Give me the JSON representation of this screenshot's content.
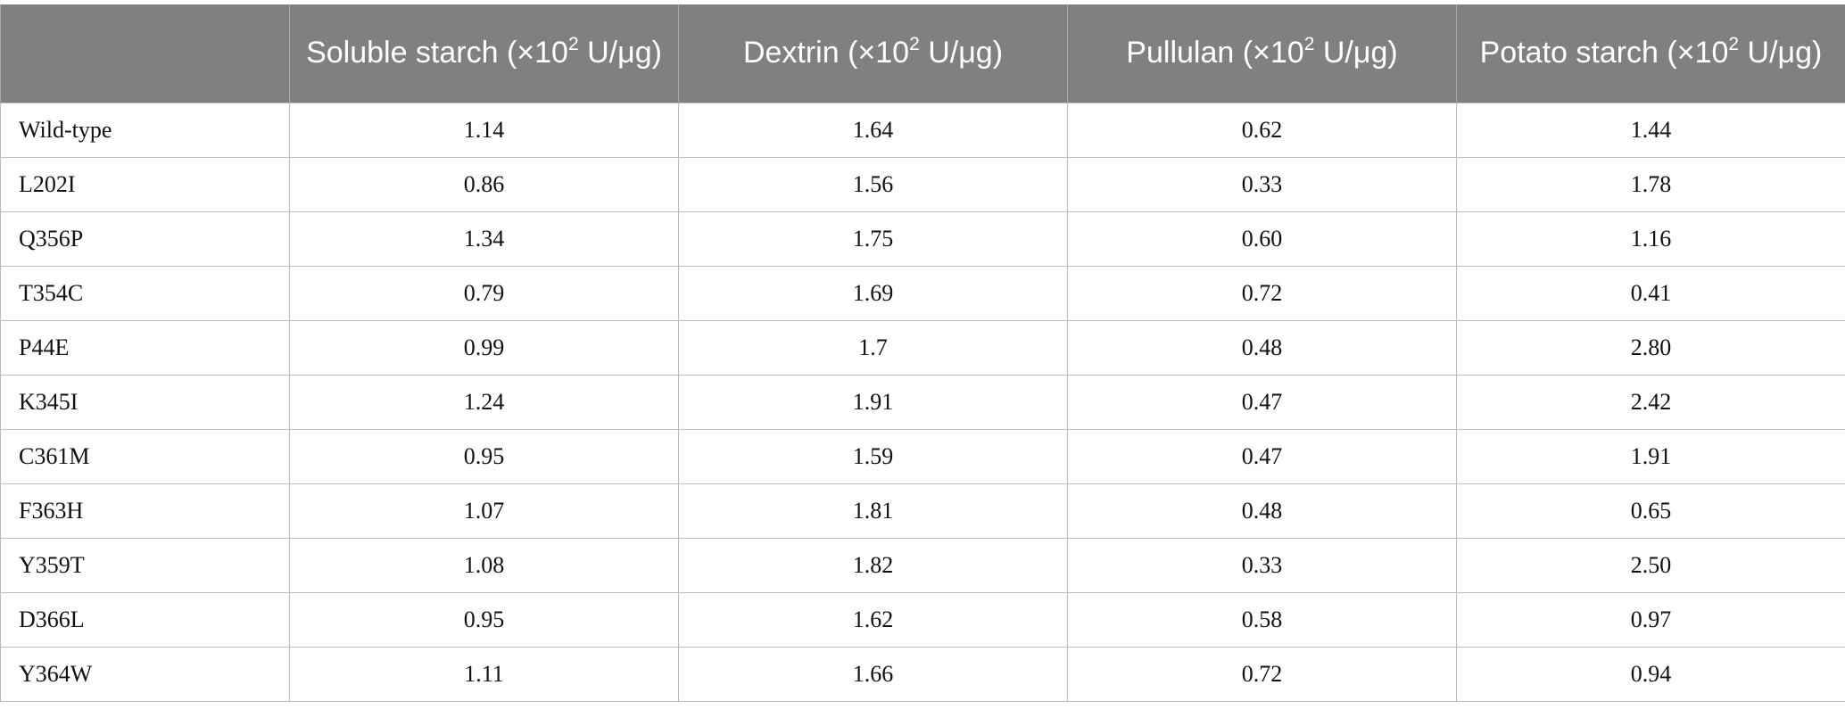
{
  "table": {
    "headers": [
      {
        "pre": "",
        "exp": "",
        "post": ""
      },
      {
        "pre": "Soluble starch (×10",
        "exp": "2",
        "post": " U/μg)"
      },
      {
        "pre": "Dextrin (×10",
        "exp": "2",
        "post": " U/μg)"
      },
      {
        "pre": "Pullulan (×10",
        "exp": "2",
        "post": " U/μg)"
      },
      {
        "pre": "Potato starch (×10",
        "exp": "2",
        "post": " U/μg)"
      }
    ],
    "rows": [
      [
        "Wild-type",
        "1.14",
        "1.64",
        "0.62",
        "1.44"
      ],
      [
        "L202I",
        "0.86",
        "1.56",
        "0.33",
        "1.78"
      ],
      [
        "Q356P",
        "1.34",
        "1.75",
        "0.60",
        "1.16"
      ],
      [
        "T354C",
        "0.79",
        "1.69",
        "0.72",
        "0.41"
      ],
      [
        "P44E",
        "0.99",
        "1.7",
        "0.48",
        "2.80"
      ],
      [
        "K345I",
        "1.24",
        "1.91",
        "0.47",
        "2.42"
      ],
      [
        "C361M",
        "0.95",
        "1.59",
        "0.47",
        "1.91"
      ],
      [
        "F363H",
        "1.07",
        "1.81",
        "0.48",
        "0.65"
      ],
      [
        "Y359T",
        "1.08",
        "1.82",
        "0.33",
        "2.50"
      ],
      [
        "D366L",
        "0.95",
        "1.62",
        "0.58",
        "0.97"
      ],
      [
        "Y364W",
        "1.11",
        "1.66",
        "0.72",
        "0.94"
      ]
    ]
  }
}
